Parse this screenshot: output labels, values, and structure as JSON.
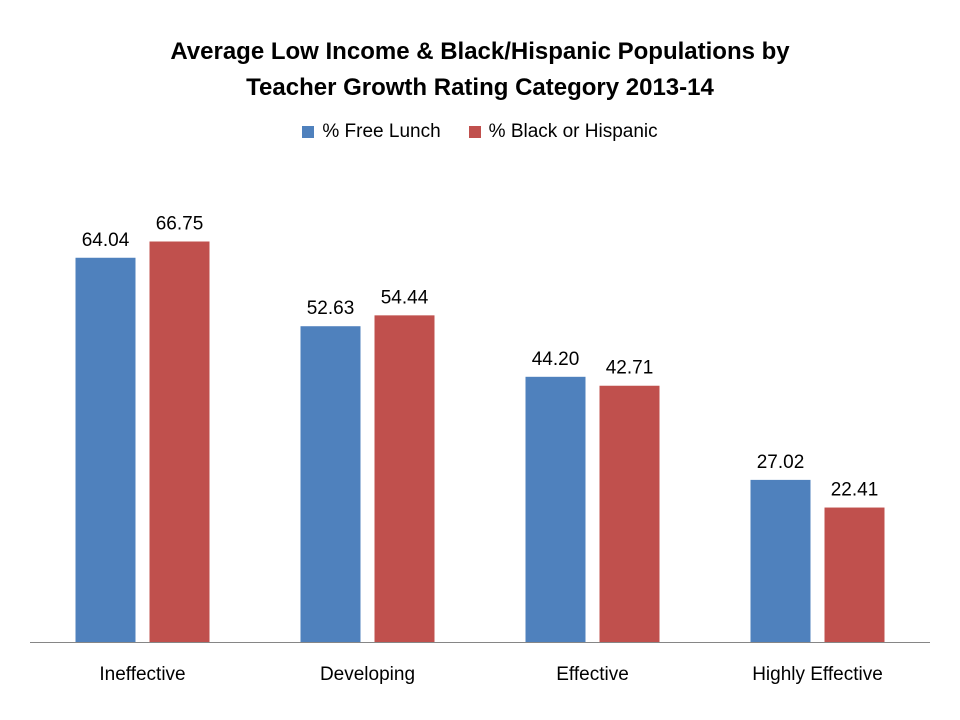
{
  "chart_data": {
    "type": "bar",
    "title": "Average Low Income & Black/Hispanic Populations by Teacher Growth Rating Category 2013-14",
    "title_lines": [
      "Average Low Income & Black/Hispanic Populations by",
      "Teacher Growth Rating Category 2013-14"
    ],
    "categories": [
      "Ineffective",
      "Developing",
      "Effective",
      "Highly Effective"
    ],
    "series": [
      {
        "name": "% Free Lunch",
        "color": "#4F81BD",
        "values": [
          64.04,
          52.63,
          44.2,
          27.02
        ],
        "labels": [
          "64.04",
          "52.63",
          "44.20",
          "27.02"
        ]
      },
      {
        "name": "% Black or Hispanic",
        "color": "#C0504D",
        "values": [
          66.75,
          54.44,
          42.71,
          22.41
        ],
        "labels": [
          "66.75",
          "54.44",
          "42.71",
          "22.41"
        ]
      }
    ],
    "xlabel": "",
    "ylabel": "",
    "ylim": [
      0,
      70
    ],
    "grid": false,
    "legend_position": "top"
  }
}
